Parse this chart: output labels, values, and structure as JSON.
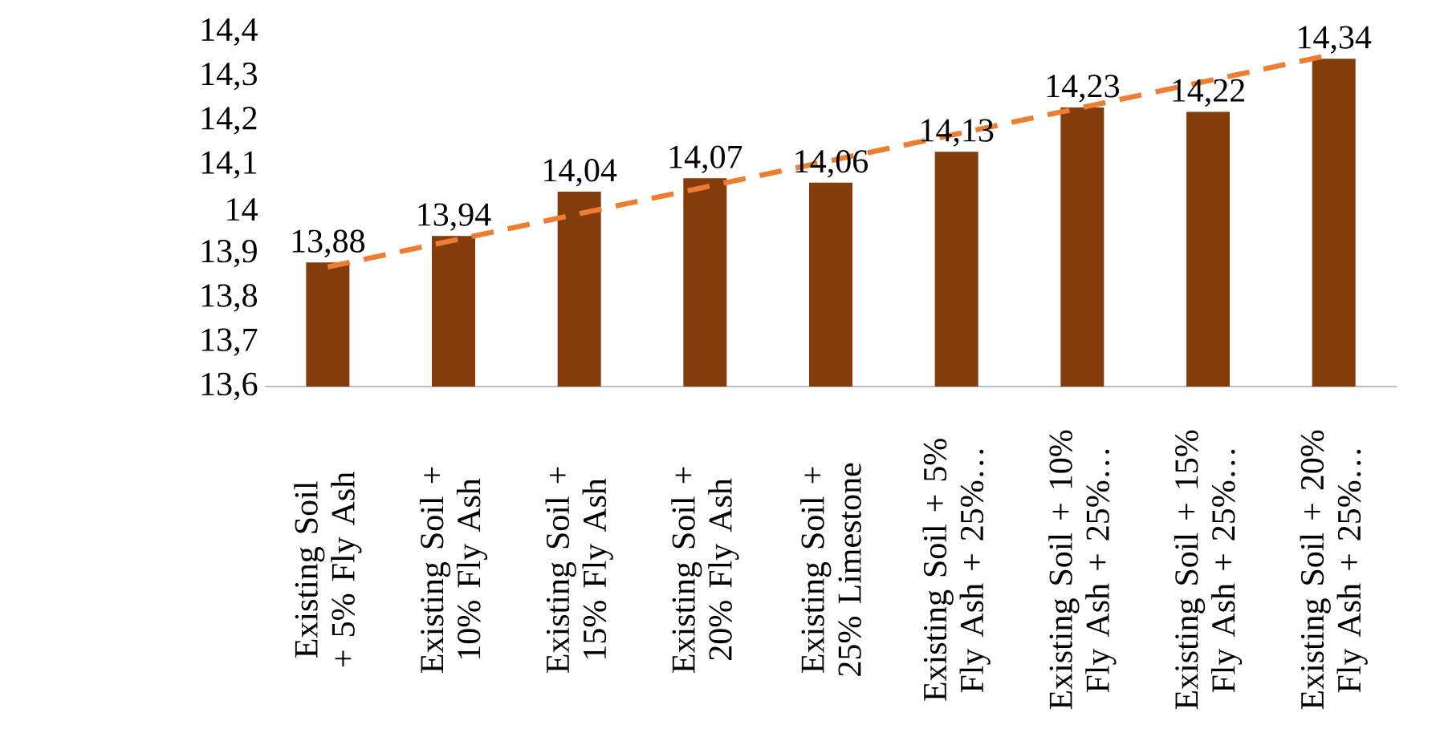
{
  "chart_data": {
    "type": "bar",
    "categories": [
      "Existing Soil + 5% Fly Ash",
      "Existing Soil + 10% Fly Ash",
      "Existing Soil + 15% Fly Ash",
      "Existing Soil + 20% Fly Ash",
      "Existing Soil + 25% Limestone",
      "Existing Soil + 5% Fly Ash + 25%…",
      "Existing Soil + 10% Fly Ash + 25%…",
      "Existing Soil + 15% Fly Ash + 25%…",
      "Existing Soil + 20% Fly Ash + 25%…"
    ],
    "series": [
      {
        "color": "#843c0c",
        "values": [
          13.88,
          13.94,
          14.04,
          14.07,
          14.06,
          14.13,
          14.23,
          14.22,
          14.34
        ],
        "data_labels": true,
        "value_labels": [
          "13,88",
          "13,94",
          "14,04",
          "14,07",
          "14,06",
          "14,13",
          "14,23",
          "14,22",
          "14,34"
        ]
      },
      {
        "type": "line",
        "color": "#ed7d31",
        "line_style": "dashed",
        "marker": "none",
        "values": [
          13.87,
          13.93,
          13.99,
          14.05,
          14.11,
          14.17,
          14.23,
          14.29,
          14.35
        ]
      }
    ],
    "ylim": [
      13.6,
      14.4
    ],
    "yticks": [
      {
        "value": 13.6,
        "label": "13,6"
      },
      {
        "value": 13.7,
        "label": "13,7"
      },
      {
        "value": 13.8,
        "label": "13,8"
      },
      {
        "value": 13.9,
        "label": "13,9"
      },
      {
        "value": 14,
        "label": "14"
      },
      {
        "value": 14.1,
        "label": "14,1"
      },
      {
        "value": 14.2,
        "label": "14,2"
      },
      {
        "value": 14.3,
        "label": "14,3"
      },
      {
        "value": 14.4,
        "label": "14,4"
      }
    ]
  }
}
